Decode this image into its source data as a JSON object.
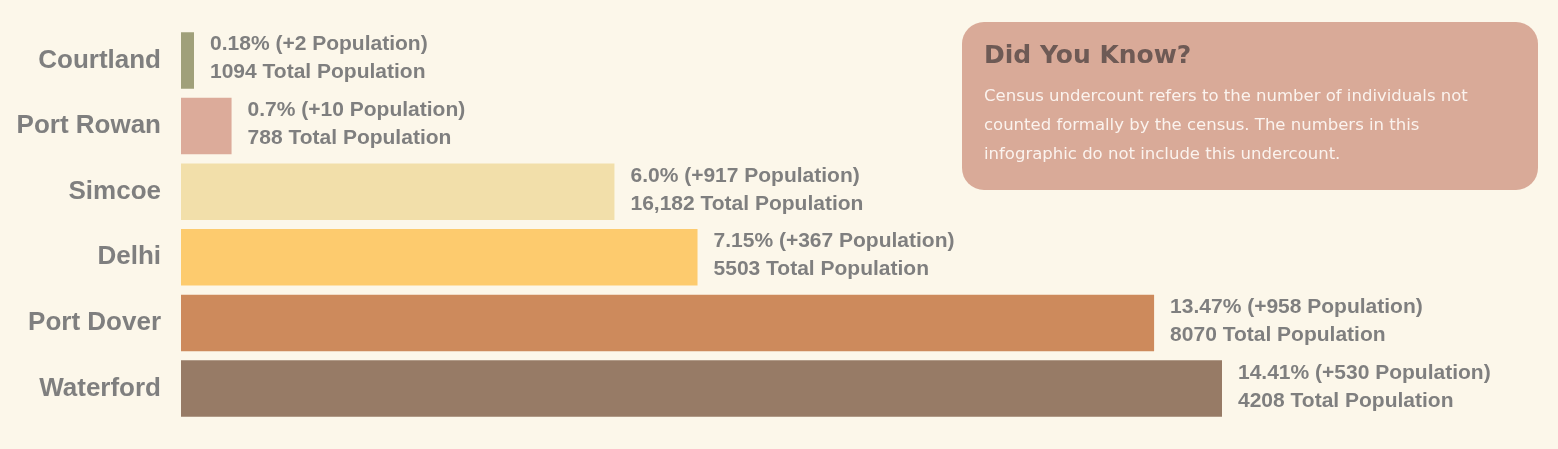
{
  "chart_data": {
    "type": "bar",
    "orientation": "horizontal",
    "categories": [
      "Courtland",
      "Port Rowan",
      "Simcoe",
      "Delhi",
      "Port Dover",
      "Waterford"
    ],
    "values": [
      0.18,
      0.7,
      6.0,
      7.15,
      13.47,
      14.41
    ],
    "colors": [
      "#a0a07a",
      "#dcab9a",
      "#f2dfaa",
      "#fdcb6e",
      "#cd8a5c",
      "#977b66"
    ],
    "value_labels": [
      "0.18% (+2 Population)\n1094 Total Population",
      "0.7% (+10 Population)\n788 Total Population",
      "6.0% (+917 Population)\n16,182 Total Population",
      "7.15% (+367 Population)\n5503 Total Population",
      "13.47% (+958 Population)\n8070 Total Population",
      "14.41% (+530 Population)\n4208 Total Population"
    ],
    "tick_labels": "y",
    "grid": false,
    "legend": false,
    "annotations": [
      "Did You Know?",
      "Census undercount refers to the number of individuals not counted formally by the census. The numbers in this infographic do not include this undercount."
    ]
  }
}
